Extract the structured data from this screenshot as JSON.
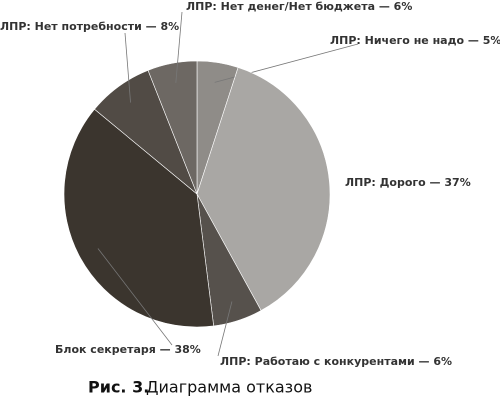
{
  "chart_data": {
    "type": "pie",
    "categories": [
      "ЛПР: Ничего не надо — 5%",
      "ЛПР: Дорого — 37%",
      "ЛПР: Работаю с конкурентами — 6%",
      "Блок секретаря — 38%",
      "ЛПР: Нет потребности — 8%",
      "ЛПР: Нет денег/Нет бюджета — 6%"
    ],
    "values": [
      5,
      37,
      6,
      38,
      8,
      6
    ],
    "colors": [
      "#8f8c88",
      "#a9a7a4",
      "#56514c",
      "#3b352e",
      "#514b45",
      "#6d6863"
    ]
  },
  "caption_label": "Рис. 3.",
  "caption": "Диаграмма отказов"
}
